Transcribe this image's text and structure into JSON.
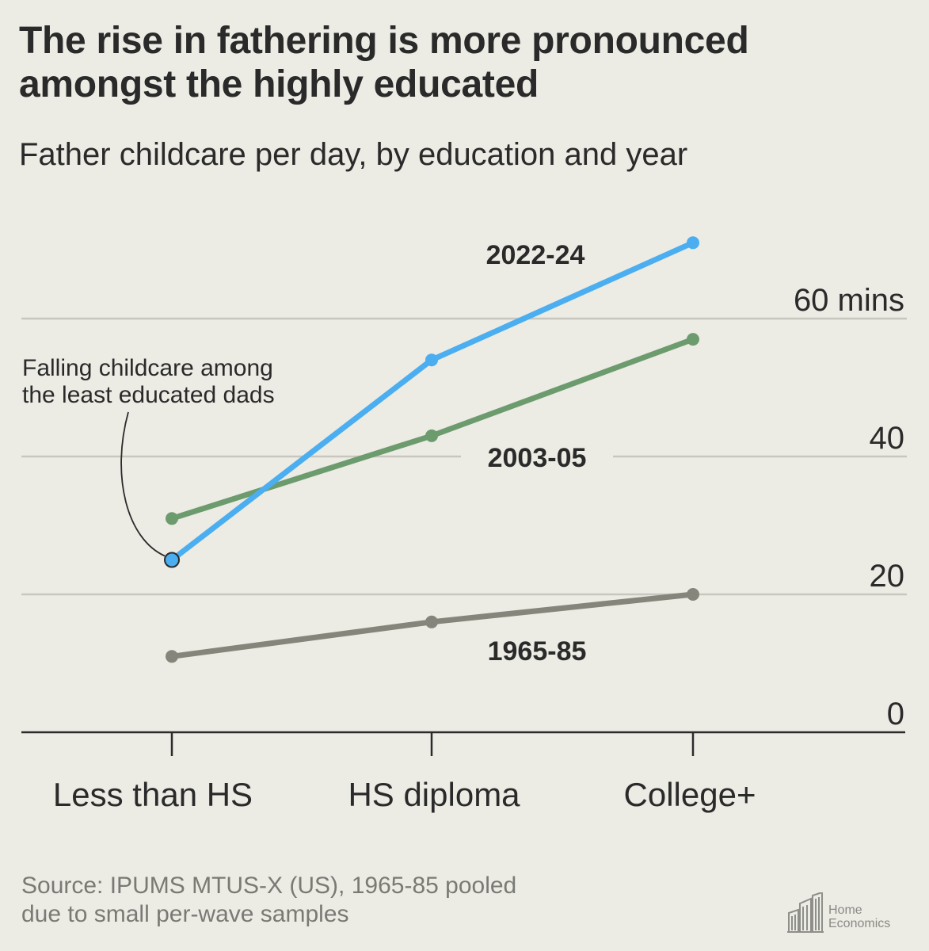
{
  "header": {
    "title": "The rise in fathering is more pronounced amongst the highly educated",
    "subtitle": "Father childcare per day, by education and year"
  },
  "chart_data": {
    "type": "line",
    "title": "The rise in fathering is more pronounced amongst the highly educated",
    "subtitle": "Father childcare per day, by education and year",
    "categories": [
      "Less than HS",
      "HS diploma",
      "College+"
    ],
    "series": [
      {
        "name": "2022-24",
        "values": [
          25,
          54,
          71
        ],
        "color": "#4aaef0"
      },
      {
        "name": "2003-05",
        "values": [
          31,
          43,
          57
        ],
        "color": "#6c9b6d"
      },
      {
        "name": "1965-85",
        "values": [
          11,
          16,
          20
        ],
        "color": "#85857c"
      }
    ],
    "ylim": [
      0,
      75
    ],
    "yticks": [
      0,
      20,
      40,
      60
    ],
    "ytick_labels": [
      "0",
      "20",
      "40",
      "60 mins"
    ],
    "grid": true,
    "xlabel": "",
    "ylabel": "",
    "annotations": [
      {
        "text_lines": [
          "Falling childcare among",
          "the least educated dads"
        ],
        "series": "2022-24",
        "category": "Less than HS"
      }
    ]
  },
  "source": {
    "lines": [
      "Source: IPUMS MTUS-X (US), 1965-85 pooled",
      "due to small per-wave samples"
    ]
  },
  "logo": {
    "lines": [
      "Home",
      "Economics"
    ]
  },
  "colors": {
    "background": "#ecebe4",
    "grid": "#c8c7bf",
    "axis": "#2b2b2b",
    "text": "#2a2a2a"
  }
}
